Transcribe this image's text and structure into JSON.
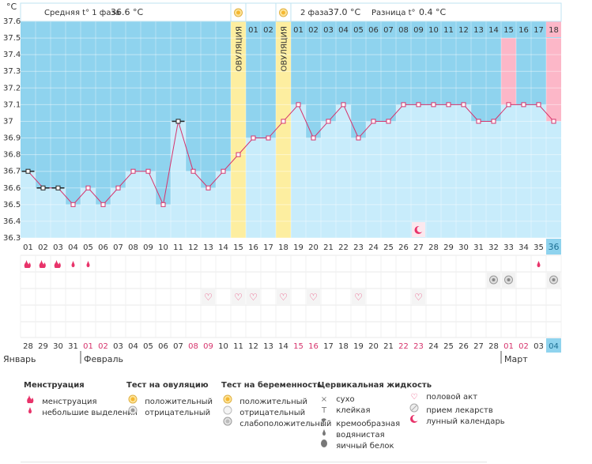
{
  "header": {
    "unit": "°C",
    "phase1_label": "Средняя t° 1 фаза",
    "phase1_value": "36.6 °C",
    "phase2_label": "2 фаза",
    "phase2_value": "37.0 °C",
    "diff_label": "Разница t°",
    "diff_value": "0.4 °C"
  },
  "chart_data": {
    "type": "line",
    "title": "Базальная температура",
    "ylabel": "°C",
    "ylim": [
      36.3,
      37.6
    ],
    "yticks": [
      "37.6",
      "37.5",
      "37.4",
      "37.3",
      "37.2",
      "37.1",
      "37",
      "36.9",
      "36.8",
      "36.7",
      "36.6",
      "36.5",
      "36.4",
      "36.3"
    ],
    "cycle_days": [
      "01",
      "02",
      "03",
      "04",
      "05",
      "06",
      "07",
      "08",
      "09",
      "10",
      "11",
      "12",
      "13",
      "14",
      "15",
      "16",
      "17",
      "18",
      "19",
      "20",
      "21",
      "22",
      "23",
      "24",
      "25",
      "26",
      "27",
      "28",
      "29",
      "30",
      "31",
      "32",
      "33",
      "34",
      "35",
      "36"
    ],
    "temperatures": [
      36.7,
      36.6,
      36.6,
      36.5,
      36.6,
      36.5,
      36.6,
      36.7,
      36.7,
      36.5,
      37.0,
      36.7,
      36.6,
      36.7,
      36.8,
      36.9,
      36.9,
      37.0,
      37.1,
      36.9,
      37.0,
      37.1,
      36.9,
      37.0,
      37.0,
      37.1,
      37.1,
      37.1,
      37.1,
      37.1,
      37.0,
      37.0,
      37.1,
      37.1,
      37.1,
      37.0
    ],
    "excluded_days": [
      "01",
      "02",
      "03",
      "11"
    ],
    "top_labels": [
      "",
      "",
      "",
      "",
      "",
      "",
      "",
      "",
      "",
      "",
      "",
      "",
      "",
      "",
      "ОВУЛЯЦИЯ",
      "01",
      "02",
      "ОВУЛЯЦИЯ",
      "01",
      "02",
      "03",
      "04",
      "05",
      "06",
      "07",
      "08",
      "09",
      "10",
      "11",
      "12",
      "13",
      "14",
      "15",
      "16",
      "17",
      "18"
    ],
    "ovulation_days": [
      "15",
      "18"
    ],
    "pink_days": [
      "33",
      "36"
    ],
    "current_day": "36",
    "dates": [
      "28",
      "29",
      "30",
      "31",
      "01",
      "02",
      "03",
      "04",
      "05",
      "06",
      "07",
      "08",
      "09",
      "10",
      "11",
      "12",
      "13",
      "14",
      "15",
      "16",
      "17",
      "18",
      "19",
      "20",
      "21",
      "22",
      "23",
      "24",
      "25",
      "26",
      "27",
      "28",
      "01",
      "02",
      "03",
      "04"
    ],
    "red_dates": [
      4,
      5,
      11,
      12,
      18,
      19,
      25,
      26,
      32,
      33
    ],
    "months": [
      "Январь",
      "Февраль",
      "Март"
    ],
    "menstruation_days": [
      "01",
      "02",
      "03"
    ],
    "spotting_days": [
      "04",
      "05",
      "35"
    ],
    "moon_day": "27",
    "medicine_days": [
      "32",
      "33",
      "36"
    ],
    "sex_days": [
      "13",
      "15",
      "16",
      "18",
      "20",
      "23",
      "27"
    ]
  },
  "legend": {
    "menstruation": {
      "title": "Менструация",
      "items": [
        {
          "icon": "menstruation-icon",
          "label": "менструация"
        },
        {
          "icon": "spotting-icon",
          "label": "небольшие выделения"
        }
      ]
    },
    "ovulation_test": {
      "title": "Тест на овуляцию",
      "items": [
        {
          "icon": "positive-test-icon",
          "label": "положительный"
        },
        {
          "icon": "negative-test-icon",
          "label": "отрицательный"
        }
      ]
    },
    "pregnancy_test": {
      "title": "Тест на беременность",
      "items": [
        {
          "icon": "positive-test-icon",
          "label": "положительный"
        },
        {
          "icon": "negative-test-icon",
          "label": "отрицательный"
        },
        {
          "icon": "weak-positive-test-icon",
          "label": "слабоположительный"
        }
      ]
    },
    "cervical_fluid": {
      "title": "Цервикальная жидкость",
      "items": [
        {
          "icon": "dry-icon",
          "label": "сухо"
        },
        {
          "icon": "sticky-icon",
          "label": "клейкая"
        },
        {
          "icon": "creamy-icon",
          "label": "кремообразная"
        },
        {
          "icon": "watery-icon",
          "label": "водянистая"
        },
        {
          "icon": "eggwhite-icon",
          "label": "яичный белок"
        }
      ]
    },
    "other": {
      "items": [
        {
          "icon": "heart-icon",
          "label": "половой акт"
        },
        {
          "icon": "pill-icon",
          "label": "прием лекарств"
        },
        {
          "icon": "moon-icon",
          "label": "лунный календарь"
        }
      ]
    }
  },
  "colors": {
    "dark_blue": "#8fd3ee",
    "light_blue": "#c8ecfb",
    "ovulation_yellow": "#fdeea0",
    "pink": "#fcb7c8",
    "line": "#d6336c",
    "current_day_bg": "#8fd3ee",
    "grid": "#e8e8e8"
  }
}
